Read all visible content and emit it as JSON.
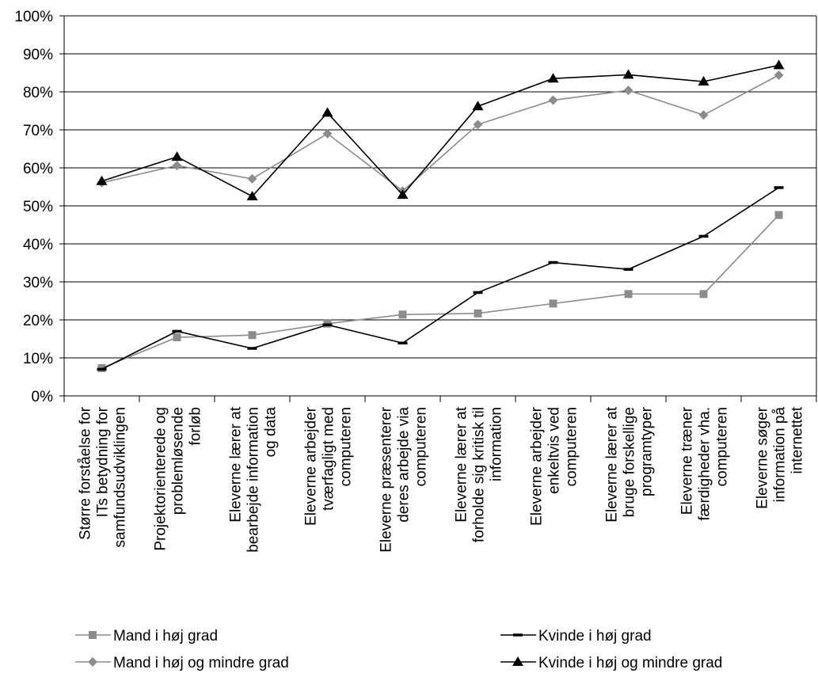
{
  "chart_data": {
    "type": "line",
    "title": "",
    "xlabel": "",
    "ylabel": "",
    "ylim": [
      0,
      100
    ],
    "yticks": [
      "0%",
      "10%",
      "20%",
      "30%",
      "40%",
      "50%",
      "60%",
      "70%",
      "80%",
      "90%",
      "100%"
    ],
    "grid": "horizontal",
    "legend_position": "bottom",
    "categories": [
      [
        "Større forståelse for",
        "ITs betydning for",
        "samfundsudviklingen"
      ],
      [
        "Projektorienterede og",
        "problemløsende",
        "forløb"
      ],
      [
        "Eleverne lærer at",
        "bearbejde information",
        "og data"
      ],
      [
        "Eleverne arbejder",
        "tværfagligt med",
        "computeren"
      ],
      [
        "Eleverne præsenterer",
        "deres arbejde via",
        "computeren"
      ],
      [
        "Eleverne lærer at",
        "forholde sig kritisk til",
        "information"
      ],
      [
        "Eleverne arbejder",
        "enkeltvis ved",
        "computeren"
      ],
      [
        "Eleverne lærer at",
        "bruge forskellige",
        "programtyper"
      ],
      [
        "Eleverne træner",
        "færdigheder vha.",
        "computeren"
      ],
      [
        "Eleverne søger",
        "information på",
        "internettet"
      ]
    ],
    "series": [
      {
        "name": "Mand i høj grad",
        "color": "#8c8c8c",
        "marker": "square",
        "values": [
          7.3,
          15.4,
          16.0,
          19.0,
          21.4,
          21.7,
          24.3,
          26.8,
          26.8,
          47.6
        ]
      },
      {
        "name": "Mand i høj og mindre grad",
        "color": "#8c8c8c",
        "marker": "diamond",
        "values": [
          56.1,
          60.6,
          57.1,
          69.0,
          53.9,
          71.4,
          77.8,
          80.4,
          73.9,
          84.4
        ]
      },
      {
        "name": "Kvinde i høj grad",
        "color": "#000000",
        "marker": "dash",
        "values": [
          7.0,
          17.0,
          12.5,
          18.7,
          13.9,
          27.2,
          35.1,
          33.3,
          42.0,
          54.8
        ]
      },
      {
        "name": "Kvinde i høj og mindre grad",
        "color": "#000000",
        "marker": "triangle",
        "values": [
          56.5,
          62.9,
          52.5,
          74.5,
          52.9,
          76.2,
          83.5,
          84.5,
          82.7,
          87.0
        ]
      }
    ]
  }
}
